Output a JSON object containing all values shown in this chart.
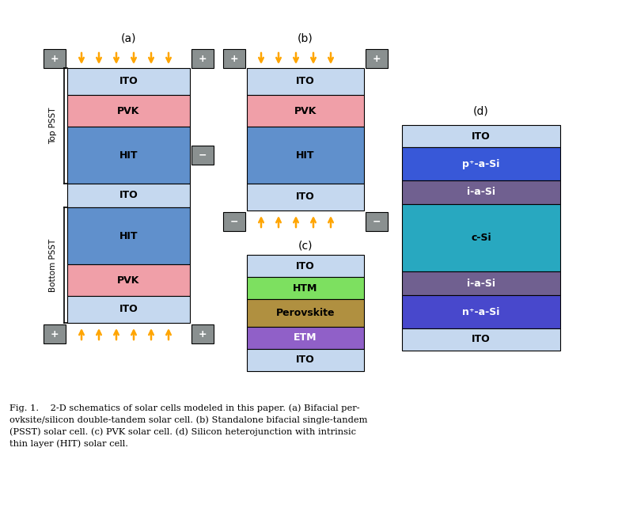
{
  "fig_width": 7.81,
  "fig_height": 6.71,
  "bg_color": "#ffffff",
  "colors": {
    "ITO": "#c5d8ef",
    "PVK": "#f09fa8",
    "HIT": "#6090cc",
    "HTM": "#7de060",
    "Perovskite": "#b09040",
    "ETM": "#9060c8",
    "electrode": "#8a9090",
    "p_a_Si": "#3858d8",
    "i_a_Si": "#706090",
    "c_Si": "#28a8c0",
    "n_a_Si": "#4848cc"
  },
  "caption_lines": [
    "Fig. 1.    2-D schematics of solar cells modeled in this paper. (a) Bifacial per-",
    "ovksite/silicon double-tandem solar cell. (b) Standalone bifacial single-tandem",
    "(PSST) solar cell. (c) PVK solar cell. (d) Silicon heterojunction with intrinsic",
    "thin layer (HIT) solar cell."
  ]
}
